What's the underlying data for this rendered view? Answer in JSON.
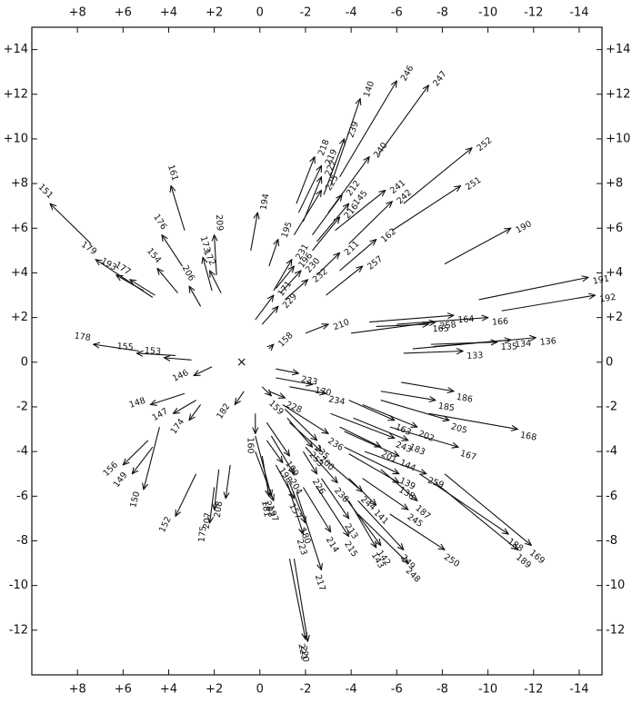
{
  "chart_data": {
    "type": "vector",
    "xlim": [
      10,
      -15
    ],
    "ylim": [
      -14,
      15
    ],
    "xticks": [
      {
        "value": 8,
        "label": "+8"
      },
      {
        "value": 6,
        "label": "+6"
      },
      {
        "value": 4,
        "label": "+4"
      },
      {
        "value": 2,
        "label": "+2"
      },
      0,
      -2,
      -4,
      -6,
      -8,
      -10,
      -12,
      -14
    ],
    "yticks": [
      {
        "value": 14,
        "label": "+14"
      },
      {
        "value": 12,
        "label": "+12"
      },
      {
        "value": 10,
        "label": "+10"
      },
      {
        "value": 8,
        "label": "+8"
      },
      {
        "value": 6,
        "label": "+6"
      },
      {
        "value": 4,
        "label": "+4"
      },
      {
        "value": 2,
        "label": "+2"
      },
      0,
      -2,
      -4,
      -6,
      -8,
      -10,
      -12
    ],
    "color": "#111111",
    "center": {
      "label": "×",
      "x": 0.8,
      "y": 0
    },
    "vectors": [
      {
        "label": "151",
        "from": [
          7.4,
          5.3
        ],
        "to": [
          9.2,
          7.1
        ]
      },
      {
        "label": "179",
        "from": [
          4.7,
          2.9
        ],
        "to": [
          7.2,
          4.6
        ]
      },
      {
        "label": "193",
        "from": [
          5.1,
          3.2
        ],
        "to": [
          6.3,
          3.9
        ]
      },
      {
        "label": "177",
        "from": [
          4.6,
          3.0
        ],
        "to": [
          5.7,
          3.7
        ]
      },
      {
        "label": "161",
        "from": [
          3.3,
          5.9
        ],
        "to": [
          3.9,
          7.9
        ]
      },
      {
        "label": "176",
        "from": [
          3.4,
          4.3
        ],
        "to": [
          4.3,
          5.7
        ]
      },
      {
        "label": "154",
        "from": [
          3.6,
          3.1
        ],
        "to": [
          4.5,
          4.2
        ]
      },
      {
        "label": "206",
        "from": [
          2.6,
          2.5
        ],
        "to": [
          3.1,
          3.4
        ]
      },
      {
        "label": "173",
        "from": [
          2.1,
          3.2
        ],
        "to": [
          2.5,
          4.7
        ]
      },
      {
        "label": "209",
        "from": [
          1.9,
          3.9
        ],
        "to": [
          2.0,
          5.7
        ]
      },
      {
        "label": "172",
        "from": [
          1.7,
          3.1
        ],
        "to": [
          2.2,
          4.1
        ]
      },
      {
        "label": "194",
        "from": [
          0.4,
          5.0
        ],
        "to": [
          0.1,
          6.7
        ]
      },
      {
        "label": "195",
        "from": [
          -0.4,
          4.3
        ],
        "to": [
          -0.8,
          5.5
        ]
      },
      {
        "label": "231",
        "from": [
          -0.6,
          3.2
        ],
        "to": [
          -1.4,
          4.6
        ]
      },
      {
        "label": "196",
        "from": [
          -0.7,
          3.3
        ],
        "to": [
          -1.5,
          4.3
        ]
      },
      {
        "label": "230",
        "from": [
          -0.9,
          3.1
        ],
        "to": [
          -1.8,
          4.1
        ]
      },
      {
        "label": "232",
        "from": [
          -1.1,
          2.8
        ],
        "to": [
          -2.1,
          3.7
        ]
      },
      {
        "label": "171",
        "from": [
          0.2,
          1.9
        ],
        "to": [
          -0.6,
          3.0
        ]
      },
      {
        "label": "229",
        "from": [
          -0.1,
          1.7
        ],
        "to": [
          -0.8,
          2.5
        ]
      },
      {
        "label": "218",
        "from": [
          -1.6,
          7.1
        ],
        "to": [
          -2.4,
          9.2
        ]
      },
      {
        "label": "219",
        "from": [
          -1.7,
          6.7
        ],
        "to": [
          -2.7,
          8.8
        ]
      },
      {
        "label": "222",
        "from": [
          -1.9,
          6.3
        ],
        "to": [
          -2.7,
          8.3
        ]
      },
      {
        "label": "239",
        "from": [
          -2.8,
          7.5
        ],
        "to": [
          -3.7,
          10.0
        ]
      },
      {
        "label": "140",
        "from": [
          -3.1,
          7.9
        ],
        "to": [
          -4.4,
          11.8
        ]
      },
      {
        "label": "246",
        "from": [
          -3.5,
          8.3
        ],
        "to": [
          -6.0,
          12.6
        ]
      },
      {
        "label": "247",
        "from": [
          -5.2,
          9.3
        ],
        "to": [
          -7.4,
          12.4
        ]
      },
      {
        "label": "240",
        "from": [
          -3.0,
          6.7
        ],
        "to": [
          -4.8,
          9.2
        ]
      },
      {
        "label": "252",
        "from": [
          -6.3,
          7.1
        ],
        "to": [
          -9.3,
          9.6
        ]
      },
      {
        "label": "241",
        "from": [
          -3.3,
          5.9
        ],
        "to": [
          -5.5,
          7.7
        ]
      },
      {
        "label": "242",
        "from": [
          -3.9,
          5.3
        ],
        "to": [
          -5.8,
          7.2
        ]
      },
      {
        "label": "251",
        "from": [
          -5.8,
          5.9
        ],
        "to": [
          -8.8,
          7.9
        ]
      },
      {
        "label": "212",
        "from": [
          -2.3,
          5.7
        ],
        "to": [
          -3.6,
          7.5
        ]
      },
      {
        "label": "145",
        "from": [
          -2.5,
          5.4
        ],
        "to": [
          -3.9,
          7.1
        ]
      },
      {
        "label": "216",
        "from": [
          -2.3,
          5.0
        ],
        "to": [
          -3.5,
          6.5
        ]
      },
      {
        "label": "225",
        "from": [
          -1.5,
          5.7
        ],
        "to": [
          -2.7,
          7.7
        ]
      },
      {
        "label": "211",
        "from": [
          -2.5,
          3.9
        ],
        "to": [
          -3.5,
          4.9
        ]
      },
      {
        "label": "162",
        "from": [
          -3.5,
          4.1
        ],
        "to": [
          -5.1,
          5.5
        ]
      },
      {
        "label": "257",
        "from": [
          -2.9,
          3.0
        ],
        "to": [
          -4.5,
          4.3
        ]
      },
      {
        "label": "190",
        "from": [
          -8.1,
          4.4
        ],
        "to": [
          -11.0,
          6.0
        ]
      },
      {
        "label": "191",
        "from": [
          -9.6,
          2.8
        ],
        "to": [
          -14.4,
          3.8
        ]
      },
      {
        "label": "192",
        "from": [
          -10.6,
          2.3
        ],
        "to": [
          -14.7,
          3.0
        ]
      },
      {
        "label": "164",
        "from": [
          -4.8,
          1.8
        ],
        "to": [
          -8.5,
          2.1
        ]
      },
      {
        "label": "166",
        "from": [
          -6.0,
          1.7
        ],
        "to": [
          -10.0,
          2.0
        ]
      },
      {
        "label": "258",
        "from": [
          -4.0,
          1.3
        ],
        "to": [
          -7.7,
          1.8
        ]
      },
      {
        "label": "165",
        "from": [
          -5.1,
          1.6
        ],
        "to": [
          -7.4,
          1.7
        ]
      },
      {
        "label": "135",
        "from": [
          -7.5,
          0.8
        ],
        "to": [
          -10.4,
          0.9
        ]
      },
      {
        "label": "134",
        "from": [
          -7.6,
          0.7
        ],
        "to": [
          -11.0,
          1.0
        ]
      },
      {
        "label": "136",
        "from": [
          -6.7,
          0.6
        ],
        "to": [
          -12.1,
          1.1
        ]
      },
      {
        "label": "133",
        "from": [
          -6.3,
          0.4
        ],
        "to": [
          -8.9,
          0.5
        ]
      },
      {
        "label": "210",
        "from": [
          -2.0,
          1.3
        ],
        "to": [
          -3.0,
          1.7
        ]
      },
      {
        "label": "158",
        "from": [
          -0.4,
          0.6
        ],
        "to": [
          -0.6,
          0.8
        ]
      },
      {
        "label": "178",
        "from": [
          5.3,
          0.5
        ],
        "to": [
          7.3,
          0.8
        ]
      },
      {
        "label": "155",
        "from": [
          3.7,
          0.3
        ],
        "to": [
          5.4,
          0.4
        ]
      },
      {
        "label": "153",
        "from": [
          3.0,
          0.1
        ],
        "to": [
          4.2,
          0.2
        ]
      },
      {
        "label": "146",
        "from": [
          2.1,
          -0.2
        ],
        "to": [
          2.9,
          -0.6
        ]
      },
      {
        "label": "233",
        "from": [
          -0.7,
          -0.3
        ],
        "to": [
          -1.7,
          -0.5
        ]
      },
      {
        "label": "170",
        "from": [
          -0.7,
          -0.7
        ],
        "to": [
          -2.3,
          -1.0
        ]
      },
      {
        "label": "234",
        "from": [
          -1.3,
          -1.1
        ],
        "to": [
          -2.9,
          -1.4
        ]
      },
      {
        "label": "159",
        "from": [
          -0.1,
          -1.1
        ],
        "to": [
          -0.5,
          -1.5
        ]
      },
      {
        "label": "228",
        "from": [
          -0.4,
          -1.3
        ],
        "to": [
          -1.1,
          -1.6
        ]
      },
      {
        "label": "148",
        "from": [
          3.3,
          -1.4
        ],
        "to": [
          4.8,
          -1.9
        ]
      },
      {
        "label": "147",
        "from": [
          2.8,
          -1.7
        ],
        "to": [
          3.8,
          -2.3
        ]
      },
      {
        "label": "174",
        "from": [
          2.6,
          -1.9
        ],
        "to": [
          3.1,
          -2.6
        ]
      },
      {
        "label": "182",
        "from": [
          0.7,
          -1.3
        ],
        "to": [
          1.1,
          -1.9
        ]
      },
      {
        "label": "160",
        "from": [
          0.2,
          -2.3
        ],
        "to": [
          0.2,
          -3.2
        ]
      },
      {
        "label": "163",
        "from": [
          -3.9,
          -1.7
        ],
        "to": [
          -5.9,
          -2.6
        ]
      },
      {
        "label": "202",
        "from": [
          -4.5,
          -1.9
        ],
        "to": [
          -6.9,
          -2.9
        ]
      },
      {
        "label": "205",
        "from": [
          -5.3,
          -1.7
        ],
        "to": [
          -8.3,
          -2.6
        ]
      },
      {
        "label": "185",
        "from": [
          -5.3,
          -1.3
        ],
        "to": [
          -7.7,
          -1.7
        ]
      },
      {
        "label": "186",
        "from": [
          -6.2,
          -0.9
        ],
        "to": [
          -8.5,
          -1.3
        ]
      },
      {
        "label": "168",
        "from": [
          -7.4,
          -2.3
        ],
        "to": [
          -11.3,
          -3.0
        ]
      },
      {
        "label": "243",
        "from": [
          -3.1,
          -2.3
        ],
        "to": [
          -5.9,
          -3.4
        ]
      },
      {
        "label": "183",
        "from": [
          -4.1,
          -2.5
        ],
        "to": [
          -6.5,
          -3.5
        ]
      },
      {
        "label": "167",
        "from": [
          -5.7,
          -2.9
        ],
        "to": [
          -8.7,
          -3.8
        ]
      },
      {
        "label": "201",
        "from": [
          -3.5,
          -2.9
        ],
        "to": [
          -5.3,
          -3.8
        ]
      },
      {
        "label": "144",
        "from": [
          -3.7,
          -3.1
        ],
        "to": [
          -6.1,
          -4.2
        ]
      },
      {
        "label": "236",
        "from": [
          -1.0,
          -1.9
        ],
        "to": [
          -3.0,
          -3.2
        ]
      },
      {
        "label": "235",
        "from": [
          -1.1,
          -2.1
        ],
        "to": [
          -2.5,
          -3.5
        ]
      },
      {
        "label": "253",
        "from": [
          -1.2,
          -2.5
        ],
        "to": [
          -2.3,
          -3.8
        ]
      },
      {
        "label": "200",
        "from": [
          -1.3,
          -2.7
        ],
        "to": [
          -2.7,
          -4.0
        ]
      },
      {
        "label": "139",
        "from": [
          -3.7,
          -3.8
        ],
        "to": [
          -6.1,
          -5.0
        ]
      },
      {
        "label": "138",
        "from": [
          -3.9,
          -4.1
        ],
        "to": [
          -6.1,
          -5.4
        ]
      },
      {
        "label": "259",
        "from": [
          -4.6,
          -4.0
        ],
        "to": [
          -7.3,
          -5.0
        ]
      },
      {
        "label": "244",
        "from": [
          -2.9,
          -4.4
        ],
        "to": [
          -4.5,
          -5.8
        ]
      },
      {
        "label": "187",
        "from": [
          -5.3,
          -4.8
        ],
        "to": [
          -6.9,
          -6.2
        ]
      },
      {
        "label": "245",
        "from": [
          -4.5,
          -5.2
        ],
        "to": [
          -6.5,
          -6.6
        ]
      },
      {
        "label": "141",
        "from": [
          -3.9,
          -5.2
        ],
        "to": [
          -5.1,
          -6.4
        ]
      },
      {
        "label": "188",
        "from": [
          -7.0,
          -5.0
        ],
        "to": [
          -10.9,
          -7.7
        ]
      },
      {
        "label": "169",
        "from": [
          -8.1,
          -5.0
        ],
        "to": [
          -11.9,
          -8.2
        ]
      },
      {
        "label": "189",
        "from": [
          -7.7,
          -5.4
        ],
        "to": [
          -11.3,
          -8.4
        ]
      },
      {
        "label": "203",
        "from": [
          0.2,
          -3.3
        ],
        "to": [
          -0.5,
          -6.0
        ]
      },
      {
        "label": "197",
        "from": [
          0.2,
          -4.0
        ],
        "to": [
          -0.6,
          -6.2
        ]
      },
      {
        "label": "198",
        "from": [
          -0.3,
          -3.5
        ],
        "to": [
          -1.0,
          -4.5
        ]
      },
      {
        "label": "204",
        "from": [
          -0.5,
          -3.3
        ],
        "to": [
          -1.5,
          -5.0
        ]
      },
      {
        "label": "199",
        "from": [
          -0.3,
          -2.7
        ],
        "to": [
          -1.3,
          -4.2
        ]
      },
      {
        "label": "157",
        "from": [
          -0.7,
          -4.6
        ],
        "to": [
          -1.5,
          -6.1
        ]
      },
      {
        "label": "226",
        "from": [
          -1.9,
          -4.0
        ],
        "to": [
          -2.5,
          -5.0
        ]
      },
      {
        "label": "238",
        "from": [
          -2.0,
          -3.8
        ],
        "to": [
          -3.4,
          -5.4
        ]
      },
      {
        "label": "213",
        "from": [
          -2.7,
          -5.2
        ],
        "to": [
          -3.9,
          -7.0
        ]
      },
      {
        "label": "214",
        "from": [
          -1.9,
          -5.6
        ],
        "to": [
          -3.1,
          -7.6
        ]
      },
      {
        "label": "215",
        "from": [
          -2.5,
          -5.6
        ],
        "to": [
          -3.9,
          -7.8
        ]
      },
      {
        "label": "142",
        "from": [
          -3.7,
          -6.0
        ],
        "to": [
          -5.3,
          -8.2
        ]
      },
      {
        "label": "143",
        "from": [
          -3.9,
          -6.2
        ],
        "to": [
          -5.1,
          -8.3
        ]
      },
      {
        "label": "249",
        "from": [
          -4.3,
          -6.2
        ],
        "to": [
          -6.3,
          -8.4
        ]
      },
      {
        "label": "248",
        "from": [
          -4.3,
          -6.8
        ],
        "to": [
          -6.5,
          -9.0
        ]
      },
      {
        "label": "250",
        "from": [
          -5.7,
          -6.8
        ],
        "to": [
          -8.1,
          -8.4
        ]
      },
      {
        "label": "180",
        "from": [
          -1.3,
          -5.4
        ],
        "to": [
          -2.0,
          -7.2
        ]
      },
      {
        "label": "223",
        "from": [
          -1.2,
          -5.4
        ],
        "to": [
          -1.9,
          -7.7
        ]
      },
      {
        "label": "217",
        "from": [
          -1.6,
          -5.8
        ],
        "to": [
          -2.7,
          -9.3
        ]
      },
      {
        "label": "221",
        "from": [
          -1.3,
          -8.8
        ],
        "to": [
          -2.0,
          -12.4
        ]
      },
      {
        "label": "220",
        "from": [
          -1.5,
          -8.8
        ],
        "to": [
          -2.1,
          -12.5
        ]
      },
      {
        "label": "181",
        "from": [
          -0.1,
          -4.2
        ],
        "to": [
          -0.4,
          -6.0
        ]
      },
      {
        "label": "156",
        "from": [
          4.9,
          -3.5
        ],
        "to": [
          6.0,
          -4.6
        ]
      },
      {
        "label": "149",
        "from": [
          4.7,
          -3.8
        ],
        "to": [
          5.6,
          -5.0
        ]
      },
      {
        "label": "150",
        "from": [
          4.4,
          -2.9
        ],
        "to": [
          5.1,
          -5.7
        ]
      },
      {
        "label": "152",
        "from": [
          2.8,
          -5.0
        ],
        "to": [
          3.7,
          -6.9
        ]
      },
      {
        "label": "175",
        "from": [
          2.0,
          -5.6
        ],
        "to": [
          2.2,
          -7.2
        ]
      },
      {
        "label": "207",
        "from": [
          1.8,
          -4.8
        ],
        "to": [
          2.0,
          -6.6
        ]
      },
      {
        "label": "208",
        "from": [
          1.3,
          -4.6
        ],
        "to": [
          1.5,
          -6.1
        ]
      }
    ]
  }
}
